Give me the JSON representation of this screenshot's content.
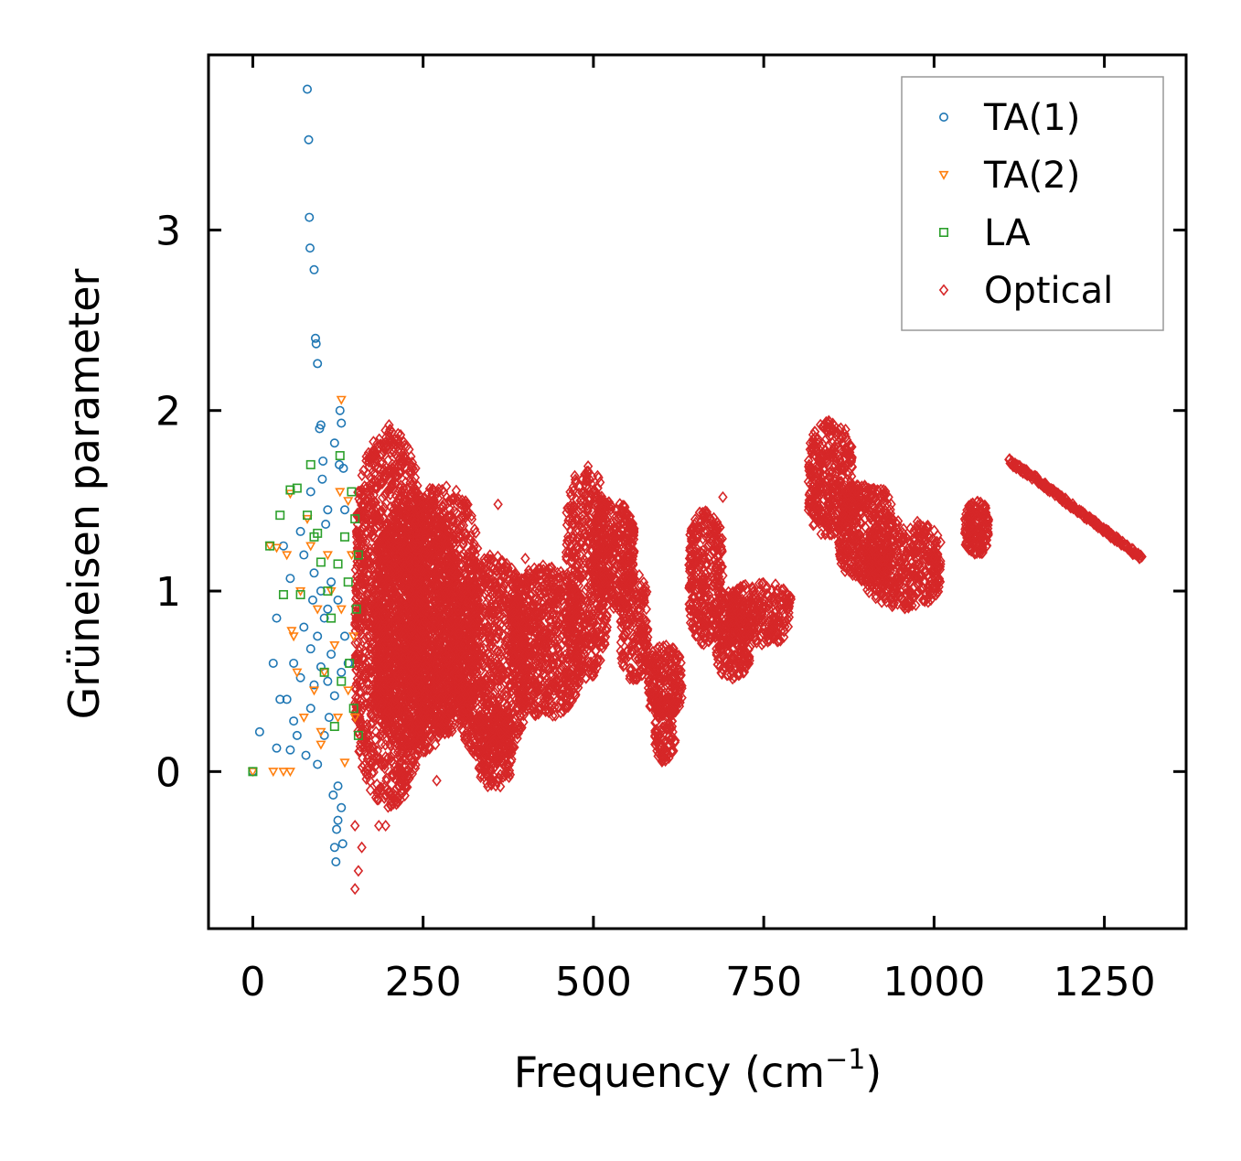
{
  "chart_data": {
    "type": "scatter",
    "title": "",
    "xlabel": "Frequency (cm",
    "xlabel_sup": "−1",
    "xlabel_close": ")",
    "ylabel": "Grüneisen parameter",
    "xlim": [
      -65,
      1370
    ],
    "ylim": [
      -0.87,
      3.97
    ],
    "xticks": [
      0,
      250,
      500,
      750,
      1000,
      1250
    ],
    "xtick_labels": [
      "0",
      "250",
      "500",
      "750",
      "1000",
      "1250"
    ],
    "yticks": [
      0,
      1,
      2,
      3
    ],
    "ytick_labels": [
      "0",
      "1",
      "2",
      "3"
    ],
    "grid": false,
    "legend_position": "top-right",
    "series": [
      {
        "name": "TA(1)",
        "marker": "circle",
        "color": "#1f77b4",
        "points": [
          [
            0,
            0
          ],
          [
            10,
            0.22
          ],
          [
            30,
            0.6
          ],
          [
            35,
            0.13
          ],
          [
            35,
            0.85
          ],
          [
            40,
            0.4
          ],
          [
            45,
            1.25
          ],
          [
            50,
            0.4
          ],
          [
            55,
            0.12
          ],
          [
            55,
            1.07
          ],
          [
            60,
            0.28
          ],
          [
            60,
            0.6
          ],
          [
            65,
            0.2
          ],
          [
            70,
            0.52
          ],
          [
            70,
            1.33
          ],
          [
            75,
            0.8
          ],
          [
            75,
            1.2
          ],
          [
            78,
            0.09
          ],
          [
            80,
            3.78
          ],
          [
            82,
            3.5
          ],
          [
            83,
            3.07
          ],
          [
            84,
            2.9
          ],
          [
            85,
            0.35
          ],
          [
            85,
            0.68
          ],
          [
            85,
            1.55
          ],
          [
            88,
            0.95
          ],
          [
            90,
            2.78
          ],
          [
            90,
            0.48
          ],
          [
            90,
            1.1
          ],
          [
            92,
            2.4
          ],
          [
            93,
            2.37
          ],
          [
            95,
            2.26
          ],
          [
            95,
            0.04
          ],
          [
            95,
            0.75
          ],
          [
            98,
            1.9
          ],
          [
            100,
            1.92
          ],
          [
            100,
            0.58
          ],
          [
            100,
            1.0
          ],
          [
            102,
            1.62
          ],
          [
            103,
            1.72
          ],
          [
            105,
            0.2
          ],
          [
            105,
            0.85
          ],
          [
            107,
            1.37
          ],
          [
            110,
            1.45
          ],
          [
            110,
            0.5
          ],
          [
            110,
            0.9
          ],
          [
            112,
            0.3
          ],
          [
            115,
            0.65
          ],
          [
            115,
            1.05
          ],
          [
            118,
            -0.13
          ],
          [
            120,
            -0.42
          ],
          [
            120,
            0.42
          ],
          [
            120,
            1.82
          ],
          [
            122,
            -0.5
          ],
          [
            123,
            -0.32
          ],
          [
            125,
            -0.27
          ],
          [
            125,
            -0.08
          ],
          [
            125,
            0.95
          ],
          [
            127,
            1.7
          ],
          [
            128,
            2.0
          ],
          [
            130,
            -0.2
          ],
          [
            130,
            1.93
          ],
          [
            130,
            0.55
          ],
          [
            132,
            -0.4
          ],
          [
            133,
            1.68
          ],
          [
            135,
            0.75
          ],
          [
            135,
            1.45
          ],
          [
            140,
            0.6
          ]
        ]
      },
      {
        "name": "TA(2)",
        "marker": "triangle-down",
        "color": "#ff7f0e",
        "points": [
          [
            0,
            0
          ],
          [
            25,
            1.25
          ],
          [
            30,
            0.0
          ],
          [
            35,
            1.24
          ],
          [
            45,
            0.0
          ],
          [
            50,
            1.2
          ],
          [
            55,
            0.0
          ],
          [
            55,
            1.54
          ],
          [
            57,
            0.78
          ],
          [
            60,
            0.75
          ],
          [
            65,
            0.55
          ],
          [
            70,
            1.0
          ],
          [
            75,
            0.3
          ],
          [
            80,
            1.4
          ],
          [
            85,
            1.25
          ],
          [
            90,
            0.45
          ],
          [
            95,
            0.9
          ],
          [
            100,
            0.15
          ],
          [
            100,
            0.22
          ],
          [
            105,
            0.55
          ],
          [
            110,
            1.2
          ],
          [
            115,
            1.0
          ],
          [
            120,
            0.7
          ],
          [
            125,
            0.3
          ],
          [
            128,
            1.55
          ],
          [
            130,
            2.06
          ],
          [
            130,
            0.9
          ],
          [
            135,
            0.05
          ],
          [
            140,
            1.5
          ],
          [
            140,
            0.45
          ],
          [
            145,
            1.2
          ],
          [
            148,
            0.75
          ],
          [
            150,
            0.3
          ]
        ]
      },
      {
        "name": "LA",
        "marker": "square",
        "color": "#2ca02c",
        "points": [
          [
            0,
            0
          ],
          [
            25,
            1.25
          ],
          [
            40,
            1.42
          ],
          [
            45,
            0.98
          ],
          [
            55,
            1.56
          ],
          [
            65,
            1.57
          ],
          [
            70,
            0.98
          ],
          [
            80,
            1.42
          ],
          [
            85,
            1.7
          ],
          [
            90,
            1.3
          ],
          [
            95,
            1.32
          ],
          [
            100,
            1.16
          ],
          [
            105,
            0.55
          ],
          [
            110,
            1.0
          ],
          [
            115,
            0.85
          ],
          [
            120,
            0.25
          ],
          [
            125,
            1.15
          ],
          [
            128,
            1.75
          ],
          [
            130,
            0.5
          ],
          [
            135,
            1.3
          ],
          [
            140,
            1.05
          ],
          [
            142,
            0.6
          ],
          [
            145,
            1.55
          ],
          [
            148,
            0.35
          ],
          [
            150,
            1.4
          ],
          [
            152,
            0.9
          ],
          [
            155,
            1.2
          ],
          [
            155,
            0.2
          ]
        ]
      },
      {
        "name": "Optical",
        "marker": "diamond",
        "color": "#d62728",
        "clusters": [
          {
            "x": [
              150,
              250
            ],
            "y": [
              -0.2,
              1.9
            ],
            "n": 1400
          },
          {
            "x": [
              180,
              300
            ],
            "y": [
              0.1,
              1.5
            ],
            "n": 1500
          },
          {
            "x": [
              230,
              330
            ],
            "y": [
              0.2,
              1.6
            ],
            "n": 900
          },
          {
            "x": [
              300,
              400
            ],
            "y": [
              0.05,
              1.2
            ],
            "n": 900
          },
          {
            "x": [
              330,
              380
            ],
            "y": [
              -0.1,
              0.4
            ],
            "n": 220
          },
          {
            "x": [
              380,
              480
            ],
            "y": [
              0.3,
              1.15
            ],
            "n": 700
          },
          {
            "x": [
              460,
              520
            ],
            "y": [
              0.5,
              1.7
            ],
            "n": 450
          },
          {
            "x": [
              500,
              560
            ],
            "y": [
              0.9,
              1.5
            ],
            "n": 350
          },
          {
            "x": [
              540,
              580
            ],
            "y": [
              0.5,
              1.1
            ],
            "n": 200
          },
          {
            "x": [
              580,
              630
            ],
            "y": [
              0.3,
              0.7
            ],
            "n": 200
          },
          {
            "x": [
              590,
              620
            ],
            "y": [
              0.05,
              0.45
            ],
            "n": 130
          },
          {
            "x": [
              640,
              690
            ],
            "y": [
              0.7,
              1.45
            ],
            "n": 320
          },
          {
            "x": [
              680,
              730
            ],
            "y": [
              0.5,
              1.0
            ],
            "n": 220
          },
          {
            "x": [
              700,
              790
            ],
            "y": [
              0.7,
              1.05
            ],
            "n": 260
          },
          {
            "x": [
              815,
              880
            ],
            "y": [
              1.3,
              1.95
            ],
            "n": 380
          },
          {
            "x": [
              860,
              940
            ],
            "y": [
              1.05,
              1.6
            ],
            "n": 420
          },
          {
            "x": [
              900,
              1010
            ],
            "y": [
              0.9,
              1.4
            ],
            "n": 450
          },
          {
            "x": [
              1045,
              1080
            ],
            "y": [
              1.2,
              1.5
            ],
            "n": 160
          }
        ],
        "branch": {
          "x": [
            1110,
            1305
          ],
          "y_start": 1.72,
          "y_end": 1.18,
          "n": 220
        },
        "points": [
          [
            180,
            1.72
          ],
          [
            200,
            1.92
          ],
          [
            195,
            -0.3
          ],
          [
            185,
            -0.3
          ],
          [
            150,
            -0.65
          ],
          [
            155,
            -0.55
          ],
          [
            150,
            -0.3
          ],
          [
            160,
            -0.42
          ],
          [
            235,
            1.68
          ],
          [
            280,
            1.55
          ],
          [
            360,
            1.48
          ],
          [
            400,
            1.18
          ],
          [
            690,
            1.52
          ],
          [
            220,
            -0.1
          ],
          [
            270,
            -0.05
          ],
          [
            450,
            0.55
          ],
          [
            520,
            0.8
          ]
        ]
      }
    ]
  }
}
